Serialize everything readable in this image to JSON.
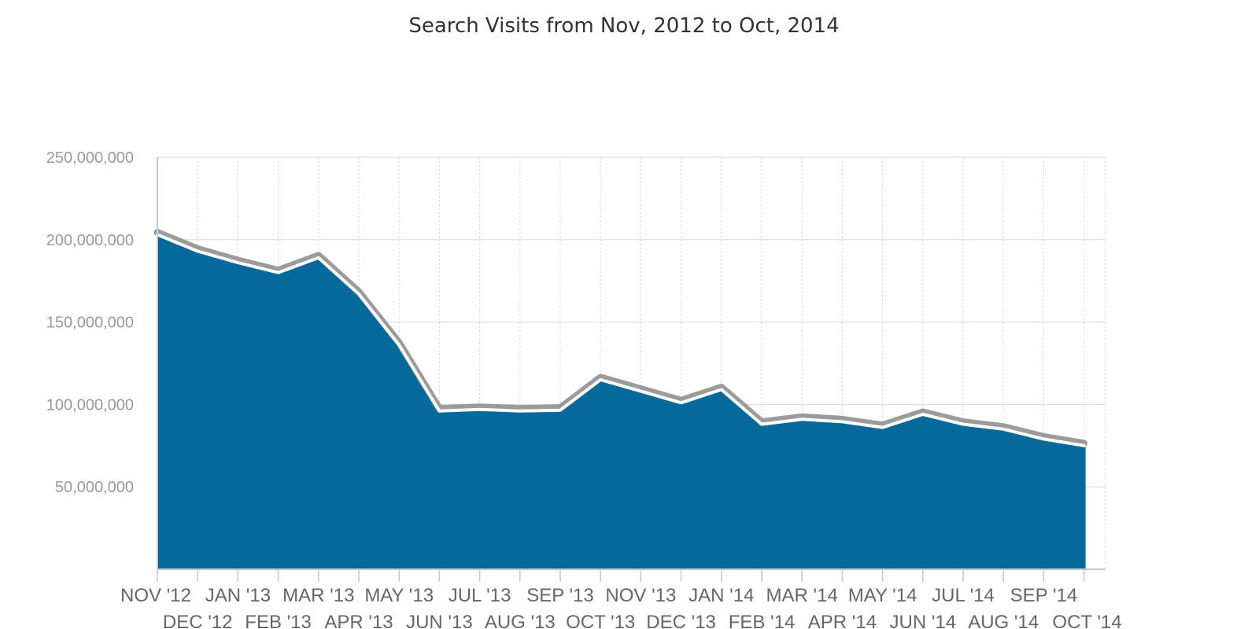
{
  "chart_data": {
    "type": "area",
    "title": "Search Visits from Nov, 2012 to Oct, 2014",
    "xlabel": "",
    "ylabel": "",
    "categories": [
      "NOV '12",
      "DEC '12",
      "JAN '13",
      "FEB '13",
      "MAR '13",
      "APR '13",
      "MAY '13",
      "JUN '13",
      "JUL '13",
      "AUG '13",
      "SEP '13",
      "OCT '13",
      "NOV '13",
      "DEC '13",
      "JAN '14",
      "FEB '14",
      "MAR '14",
      "APR '14",
      "MAY '14",
      "JUN '14",
      "JUL '14",
      "AUG '14",
      "SEP '14",
      "OCT '14"
    ],
    "values": [
      203000000,
      193000000,
      186000000,
      180000000,
      189000000,
      167000000,
      136000000,
      96000000,
      97000000,
      96000000,
      96500000,
      115000000,
      108000000,
      101000000,
      109000000,
      88000000,
      91000000,
      89500000,
      86000000,
      94000000,
      88000000,
      85000000,
      79000000,
      75000000
    ],
    "yticks": [
      {
        "value": 50000000,
        "label": "50,000,000"
      },
      {
        "value": 100000000,
        "label": "100,000,000"
      },
      {
        "value": 150000000,
        "label": "150,000,000"
      },
      {
        "value": 200000000,
        "label": "200,000,000"
      },
      {
        "value": 250000000,
        "label": "250,000,000"
      }
    ],
    "ylim": [
      0,
      250000000
    ],
    "grid": true,
    "legend": "none",
    "colors": {
      "area": "#06699c",
      "line": "#ffffff",
      "line_shadow": "#8a8a8a",
      "grid": "#d8d8d8"
    }
  }
}
